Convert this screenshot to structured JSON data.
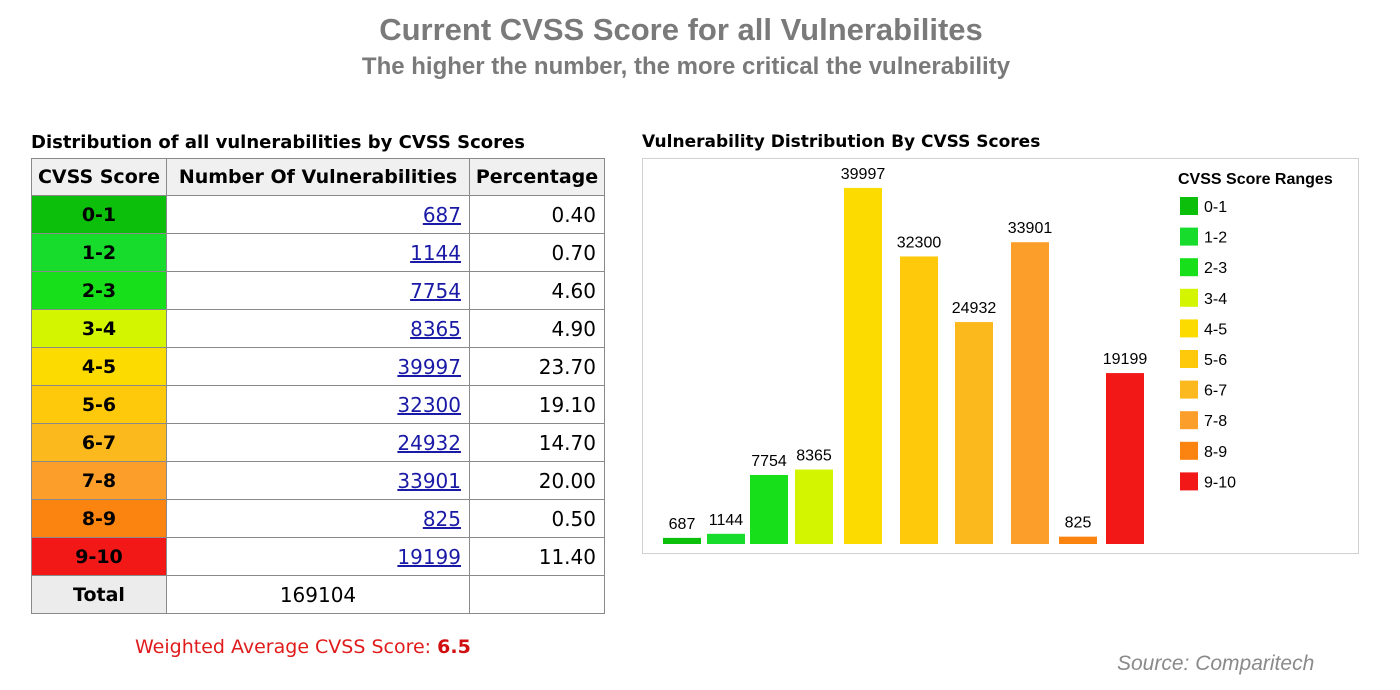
{
  "header": {
    "title": "Current CVSS Score for all Vulnerabilites",
    "subtitle": "The higher the number, the more critical the vulnerability"
  },
  "table": {
    "caption": "Distribution of all vulnerabilities by CVSS Scores",
    "headers": [
      "CVSS Score",
      "Number Of Vulnerabilities",
      "Percentage"
    ],
    "rows": [
      {
        "range": "0-1",
        "count": "687",
        "pct": "0.40",
        "color": "#0bbf0b"
      },
      {
        "range": "1-2",
        "count": "1144",
        "pct": "0.70",
        "color": "#17dc2c"
      },
      {
        "range": "2-3",
        "count": "7754",
        "pct": "4.60",
        "color": "#17e01a"
      },
      {
        "range": "3-4",
        "count": "8365",
        "pct": "4.90",
        "color": "#d4f500"
      },
      {
        "range": "4-5",
        "count": "39997",
        "pct": "23.70",
        "color": "#fcdc00"
      },
      {
        "range": "5-6",
        "count": "32300",
        "pct": "19.10",
        "color": "#fdc90a"
      },
      {
        "range": "6-7",
        "count": "24932",
        "pct": "14.70",
        "color": "#fbb91d"
      },
      {
        "range": "7-8",
        "count": "33901",
        "pct": "20.00",
        "color": "#fb9f2a"
      },
      {
        "range": "8-9",
        "count": "825",
        "pct": "0.50",
        "color": "#fb8411"
      },
      {
        "range": "9-10",
        "count": "19199",
        "pct": "11.40",
        "color": "#f31818"
      }
    ],
    "total_label": "Total",
    "total_value": "169104",
    "weighted_label": "Weighted Average CVSS Score:",
    "weighted_value": "6.5"
  },
  "chart_caption": "Vulnerability Distribution By CVSS Scores",
  "chart_data": {
    "type": "bar",
    "title": "",
    "xlabel": "",
    "ylabel": "",
    "categories": [
      "0-1",
      "1-2",
      "2-3",
      "3-4",
      "4-5",
      "5-6",
      "6-7",
      "7-8",
      "8-9",
      "9-10"
    ],
    "values": [
      687,
      1144,
      7754,
      8365,
      39997,
      32300,
      24932,
      33901,
      825,
      19199
    ],
    "colors": [
      "#0bbf0b",
      "#17dc2c",
      "#17e01a",
      "#d4f500",
      "#fcdc00",
      "#fdc90a",
      "#fbb91d",
      "#fb9f2a",
      "#fb8411",
      "#f31818"
    ],
    "ylim": [
      0,
      41000
    ],
    "grid": false,
    "legend": {
      "title": "CVSS Score Ranges",
      "position": "right"
    }
  },
  "source": "Source: Comparitech"
}
